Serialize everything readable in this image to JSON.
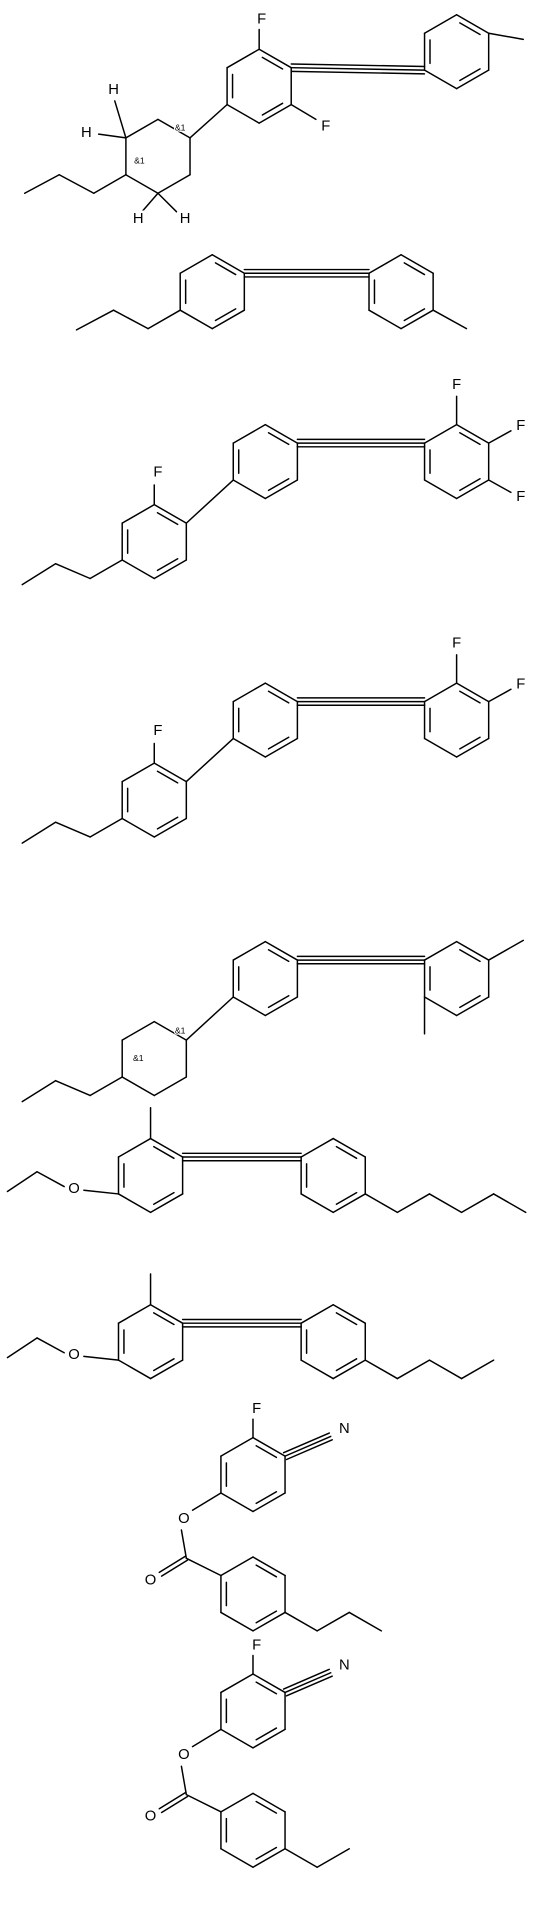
{
  "atom_labels": [
    "F",
    "F",
    "H",
    "H",
    "H",
    "H",
    "&1",
    "&1",
    "F",
    "F",
    "F",
    "F",
    "F",
    "F",
    "F",
    "&1",
    "&1",
    "O",
    "O",
    "F",
    "N",
    "O",
    "O",
    "F",
    "N",
    "O",
    "O"
  ]
}
